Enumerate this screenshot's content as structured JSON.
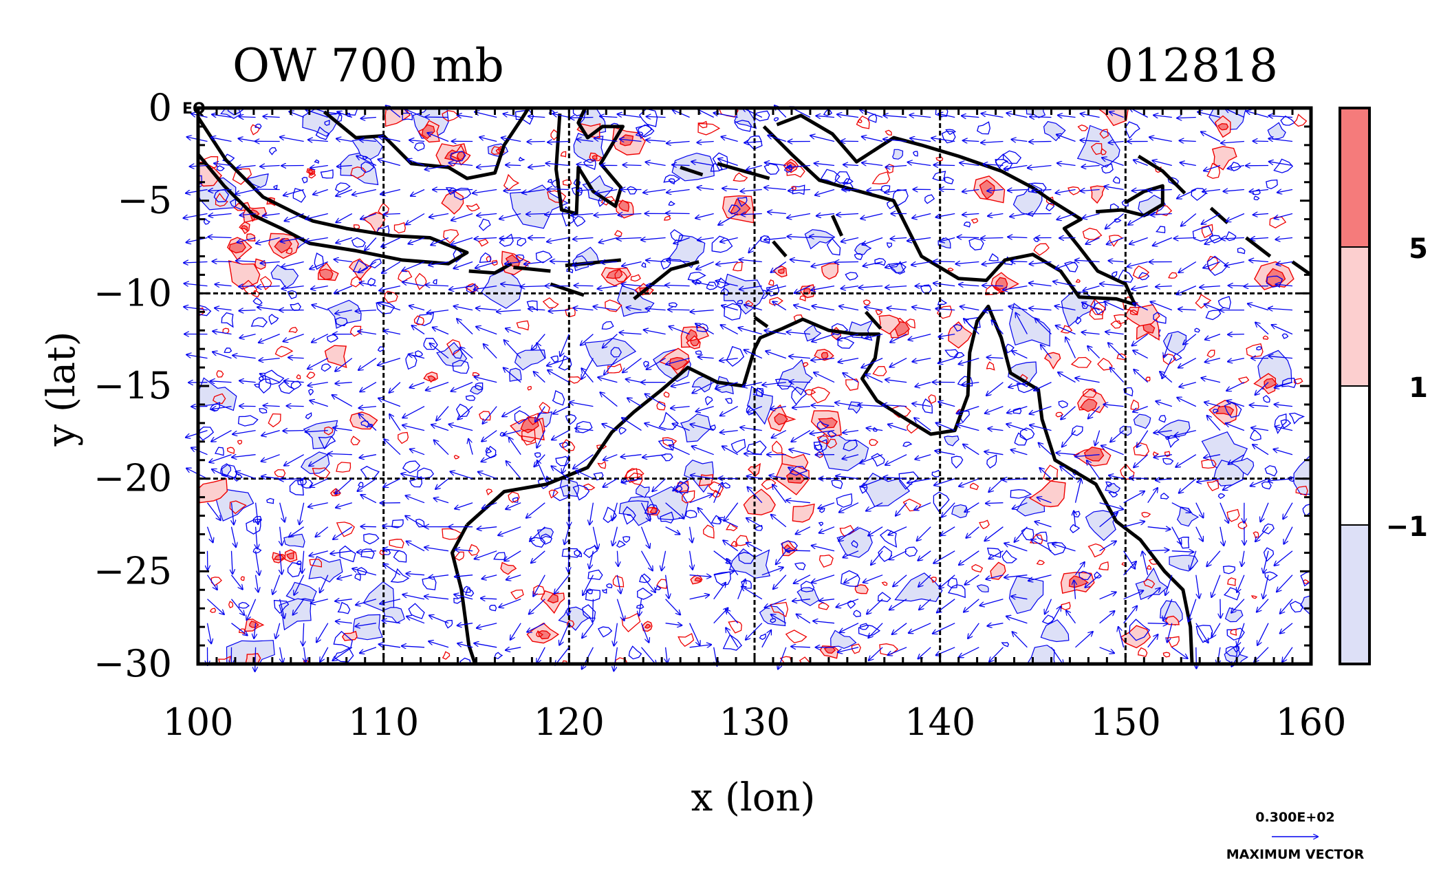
{
  "chart_data": {
    "type": "heatmap",
    "title": "OW 700 mb",
    "timestamp": "012818",
    "xlabel": "x (lon)",
    "ylabel": "y (lat)",
    "xlim": [
      100,
      160
    ],
    "ylim": [
      -30,
      0
    ],
    "x_ticks": [
      100,
      110,
      120,
      130,
      140,
      150,
      160
    ],
    "x_tick_labels": [
      "100",
      "110",
      "120",
      "130",
      "140",
      "150",
      "160"
    ],
    "y_ticks": [
      0,
      -5,
      -10,
      -15,
      -20,
      -25,
      -30
    ],
    "y_tick_labels": [
      "0",
      "−5",
      "−10",
      "−15",
      "−20",
      "−25",
      "−30"
    ],
    "equator_label": "EQ",
    "grid": true,
    "grid_lines_x": [
      110,
      120,
      130,
      140,
      150
    ],
    "grid_lines_y": [
      -10,
      -20
    ],
    "colorbar": {
      "levels": [
        -1,
        1,
        5
      ],
      "level_labels": [
        "−1",
        "1",
        "5"
      ],
      "colors": [
        "#dde0f7",
        "#ffffff",
        "#fccfcf",
        "#f57b7b"
      ]
    },
    "vector_key": {
      "value_label": "0.300E+02",
      "caption": "MAXIMUM VECTOR",
      "color": "#0000ee"
    },
    "colors": {
      "positive_contour": "#ee0000",
      "negative_contour": "#0000ee",
      "coastline": "#000000"
    }
  }
}
